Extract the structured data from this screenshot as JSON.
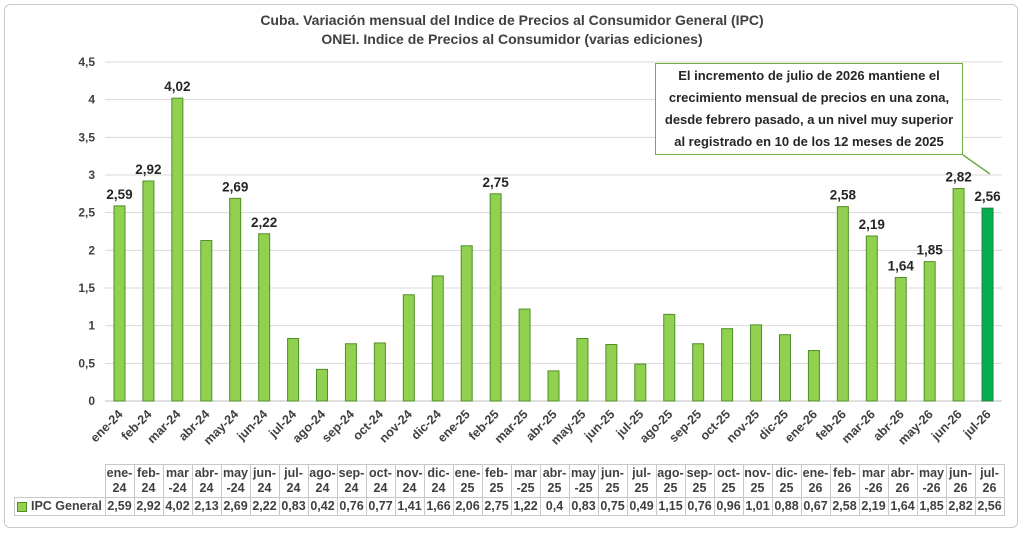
{
  "colors": {
    "bar": "#92d050",
    "bar_border": "#4e8f2a",
    "bar_highlight": "#00b050",
    "callout_border": "#70ad47",
    "gridline": "#d9d9d9",
    "text": "#404040"
  },
  "callout": {
    "text": "El incremento de julio de 2026 mantiene el crecimiento mensual de precios en una zona, desde febrero pasado, a un nivel muy superior al registrado en 10 de los 12 meses de 2025",
    "points_to": "jul-26"
  },
  "chart_data": {
    "type": "bar",
    "title": "Cuba. Variación mensual del Indice de Precios al Consumidor General  (IPC)",
    "subtitle": "ONEI. Indice de Precios al Consumidor (varias ediciones)",
    "categories": [
      "ene-24",
      "feb-24",
      "mar-24",
      "abr-24",
      "may-24",
      "jun-24",
      "jul-24",
      "ago-24",
      "sep-24",
      "oct-24",
      "nov-24",
      "dic-24",
      "ene-25",
      "feb-25",
      "mar-25",
      "abr-25",
      "may-25",
      "jun-25",
      "jul-25",
      "ago-25",
      "sep-25",
      "oct-25",
      "nov-25",
      "dic-25",
      "ene-26",
      "feb-26",
      "mar-26",
      "abr-26",
      "may-26",
      "jun-26",
      "jul-26"
    ],
    "table_headers": [
      [
        "ene-",
        "24"
      ],
      [
        "feb-",
        "24"
      ],
      [
        "mar",
        "-24"
      ],
      [
        "abr-",
        "24"
      ],
      [
        "may",
        "-24"
      ],
      [
        "jun-",
        "24"
      ],
      [
        "jul-",
        "24"
      ],
      [
        "ago-",
        "24"
      ],
      [
        "sep-",
        "24"
      ],
      [
        "oct-",
        "24"
      ],
      [
        "nov-",
        "24"
      ],
      [
        "dic-",
        "24"
      ],
      [
        "ene-",
        "25"
      ],
      [
        "feb-",
        "25"
      ],
      [
        "mar",
        "-25"
      ],
      [
        "abr-",
        "25"
      ],
      [
        "may",
        "-25"
      ],
      [
        "jun-",
        "25"
      ],
      [
        "jul-",
        "25"
      ],
      [
        "ago-",
        "25"
      ],
      [
        "sep-",
        "25"
      ],
      [
        "oct-",
        "25"
      ],
      [
        "nov-",
        "25"
      ],
      [
        "dic-",
        "25"
      ],
      [
        "ene-",
        "26"
      ],
      [
        "feb-",
        "26"
      ],
      [
        "mar",
        "-26"
      ],
      [
        "abr-",
        "26"
      ],
      [
        "may",
        "-26"
      ],
      [
        "jun-",
        "26"
      ],
      [
        "jul-",
        "26"
      ]
    ],
    "series": [
      {
        "name": "IPC General",
        "values": [
          2.59,
          2.92,
          4.02,
          2.13,
          2.69,
          2.22,
          0.83,
          0.42,
          0.76,
          0.77,
          1.41,
          1.66,
          2.06,
          2.75,
          1.22,
          0.4,
          0.83,
          0.75,
          0.49,
          1.15,
          0.76,
          0.96,
          1.01,
          0.88,
          0.67,
          2.58,
          2.19,
          1.64,
          1.85,
          2.82,
          2.56
        ],
        "table_labels": [
          "2,59",
          "2,92",
          "4,02",
          "2,13",
          "2,69",
          "2,22",
          "0,83",
          "0,42",
          "0,76",
          "0,77",
          "1,41",
          "1,66",
          "2,06",
          "2,75",
          "1,22",
          "0,4",
          "0,83",
          "0,75",
          "0,49",
          "1,15",
          "0,76",
          "0,96",
          "1,01",
          "0,88",
          "0,67",
          "2,58",
          "2,19",
          "1,64",
          "1,85",
          "2,82",
          "2,56"
        ]
      }
    ],
    "data_labels": [
      {
        "category": "ene-24",
        "text": "2,59"
      },
      {
        "category": "feb-24",
        "text": "2,92"
      },
      {
        "category": "mar-24",
        "text": "4,02"
      },
      {
        "category": "may-24",
        "text": "2,69"
      },
      {
        "category": "jun-24",
        "text": "2,22"
      },
      {
        "category": "feb-25",
        "text": "2,75"
      },
      {
        "category": "feb-26",
        "text": "2,58"
      },
      {
        "category": "mar-26",
        "text": "2,19"
      },
      {
        "category": "abr-26",
        "text": "1,64"
      },
      {
        "category": "may-26",
        "text": "1,85"
      },
      {
        "category": "jun-26",
        "text": "2,82"
      },
      {
        "category": "jul-26",
        "text": "2,56"
      }
    ],
    "highlight_category": "jul-26",
    "yticks": [
      "0",
      "0,5",
      "1",
      "1,5",
      "2",
      "2,5",
      "3",
      "3,5",
      "4",
      "4,5"
    ],
    "ylim": [
      0,
      4.5
    ],
    "grid": true,
    "legend": "data-table"
  }
}
